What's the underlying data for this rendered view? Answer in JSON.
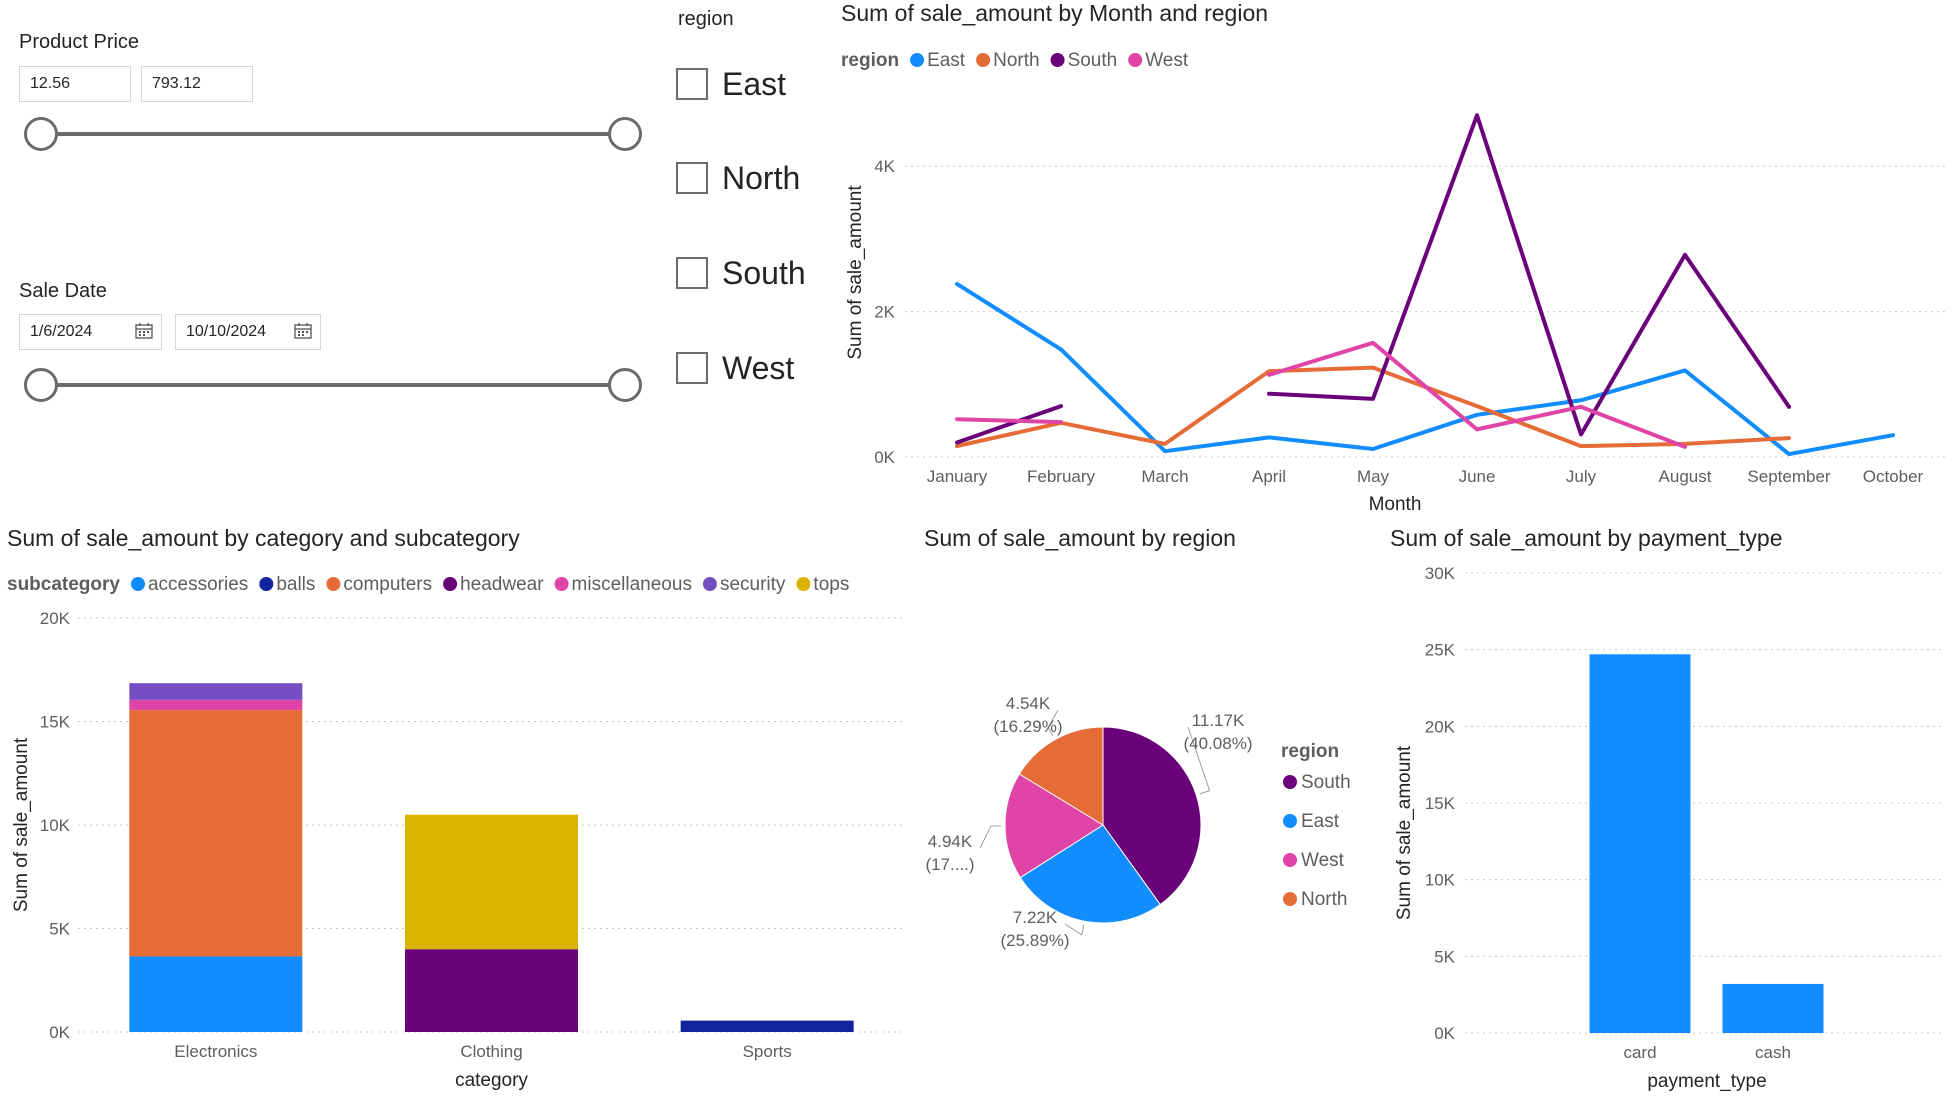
{
  "slicers": {
    "price": {
      "title": "Product Price",
      "min": "12.56",
      "max": "793.12"
    },
    "date": {
      "title": "Sale Date",
      "start": "1/6/2024",
      "end": "10/10/2024"
    },
    "region": {
      "title": "region",
      "items": [
        "East",
        "North",
        "South",
        "West"
      ]
    }
  },
  "colors": {
    "East": "#118DFF",
    "North": "#E66C37",
    "South": "#6B007B",
    "West": "#E044A7",
    "accessories": "#118DFF",
    "balls": "#12239E",
    "computers": "#E66C37",
    "headwear": "#6B007B",
    "miscellaneous": "#E044A7",
    "security": "#744EC2",
    "tops": "#D9B300"
  },
  "chart_data": [
    {
      "type": "line",
      "title": "Sum of sale_amount by Month and region",
      "xlabel": "Month",
      "ylabel": "Sum of sale_amount",
      "legend_title": "region",
      "legend_position": "top-left",
      "categories": [
        "January",
        "February",
        "March",
        "April",
        "May",
        "June",
        "July",
        "August",
        "September",
        "October"
      ],
      "ylim": [
        0,
        4800
      ],
      "yticks": [
        0,
        2000,
        4000
      ],
      "ytick_labels": [
        "0K",
        "2K",
        "4K"
      ],
      "grid": true,
      "series": [
        {
          "name": "East",
          "values": [
            2380,
            1480,
            80,
            270,
            110,
            580,
            780,
            1190,
            40,
            300
          ]
        },
        {
          "name": "North",
          "values": [
            150,
            470,
            180,
            1180,
            1230,
            700,
            150,
            180,
            260,
            null
          ]
        },
        {
          "name": "South",
          "values": [
            200,
            700,
            null,
            870,
            800,
            4700,
            310,
            2780,
            690,
            null
          ]
        },
        {
          "name": "West",
          "values": [
            520,
            480,
            null,
            1130,
            1570,
            380,
            690,
            140,
            null,
            null
          ]
        }
      ]
    },
    {
      "type": "bar",
      "stacked": true,
      "title": "Sum of sale_amount by category and subcategory",
      "xlabel": "category",
      "ylabel": "Sum of sale_amount",
      "legend_title": "subcategory",
      "legend_position": "top-left",
      "categories": [
        "Electronics",
        "Clothing",
        "Sports"
      ],
      "ylim": [
        0,
        20000
      ],
      "yticks": [
        0,
        5000,
        10000,
        15000,
        20000
      ],
      "ytick_labels": [
        "0K",
        "5K",
        "10K",
        "15K",
        "20K"
      ],
      "grid": true,
      "series": [
        {
          "name": "accessories",
          "values": [
            3650,
            0,
            0
          ]
        },
        {
          "name": "balls",
          "values": [
            0,
            0,
            550
          ]
        },
        {
          "name": "computers",
          "values": [
            11900,
            0,
            0
          ]
        },
        {
          "name": "headwear",
          "values": [
            0,
            4000,
            0
          ]
        },
        {
          "name": "miscellaneous",
          "values": [
            500,
            0,
            0
          ]
        },
        {
          "name": "security",
          "values": [
            800,
            0,
            0
          ]
        },
        {
          "name": "tops",
          "values": [
            0,
            6500,
            0
          ]
        }
      ]
    },
    {
      "type": "pie",
      "title": "Sum of sale_amount by region",
      "legend_title": "region",
      "legend_position": "right",
      "slices": [
        {
          "name": "South",
          "value": 11170,
          "label": "11.17K",
          "pct_label": "(40.08%)"
        },
        {
          "name": "East",
          "value": 7220,
          "label": "7.22K",
          "pct_label": "(25.89%)"
        },
        {
          "name": "West",
          "value": 4940,
          "label": "4.94K",
          "pct_label": "(17....)"
        },
        {
          "name": "North",
          "value": 4540,
          "label": "4.54K",
          "pct_label": "(16.29%)"
        }
      ]
    },
    {
      "type": "bar",
      "title": "Sum of sale_amount by payment_type",
      "xlabel": "payment_type",
      "ylabel": "Sum of sale_amount",
      "categories": [
        "card",
        "cash"
      ],
      "values": [
        24700,
        3200
      ],
      "ylim": [
        0,
        30000
      ],
      "yticks": [
        0,
        5000,
        10000,
        15000,
        20000,
        25000,
        30000
      ],
      "ytick_labels": [
        "0K",
        "5K",
        "10K",
        "15K",
        "20K",
        "25K",
        "30K"
      ],
      "grid": true,
      "color": "#118DFF"
    }
  ]
}
